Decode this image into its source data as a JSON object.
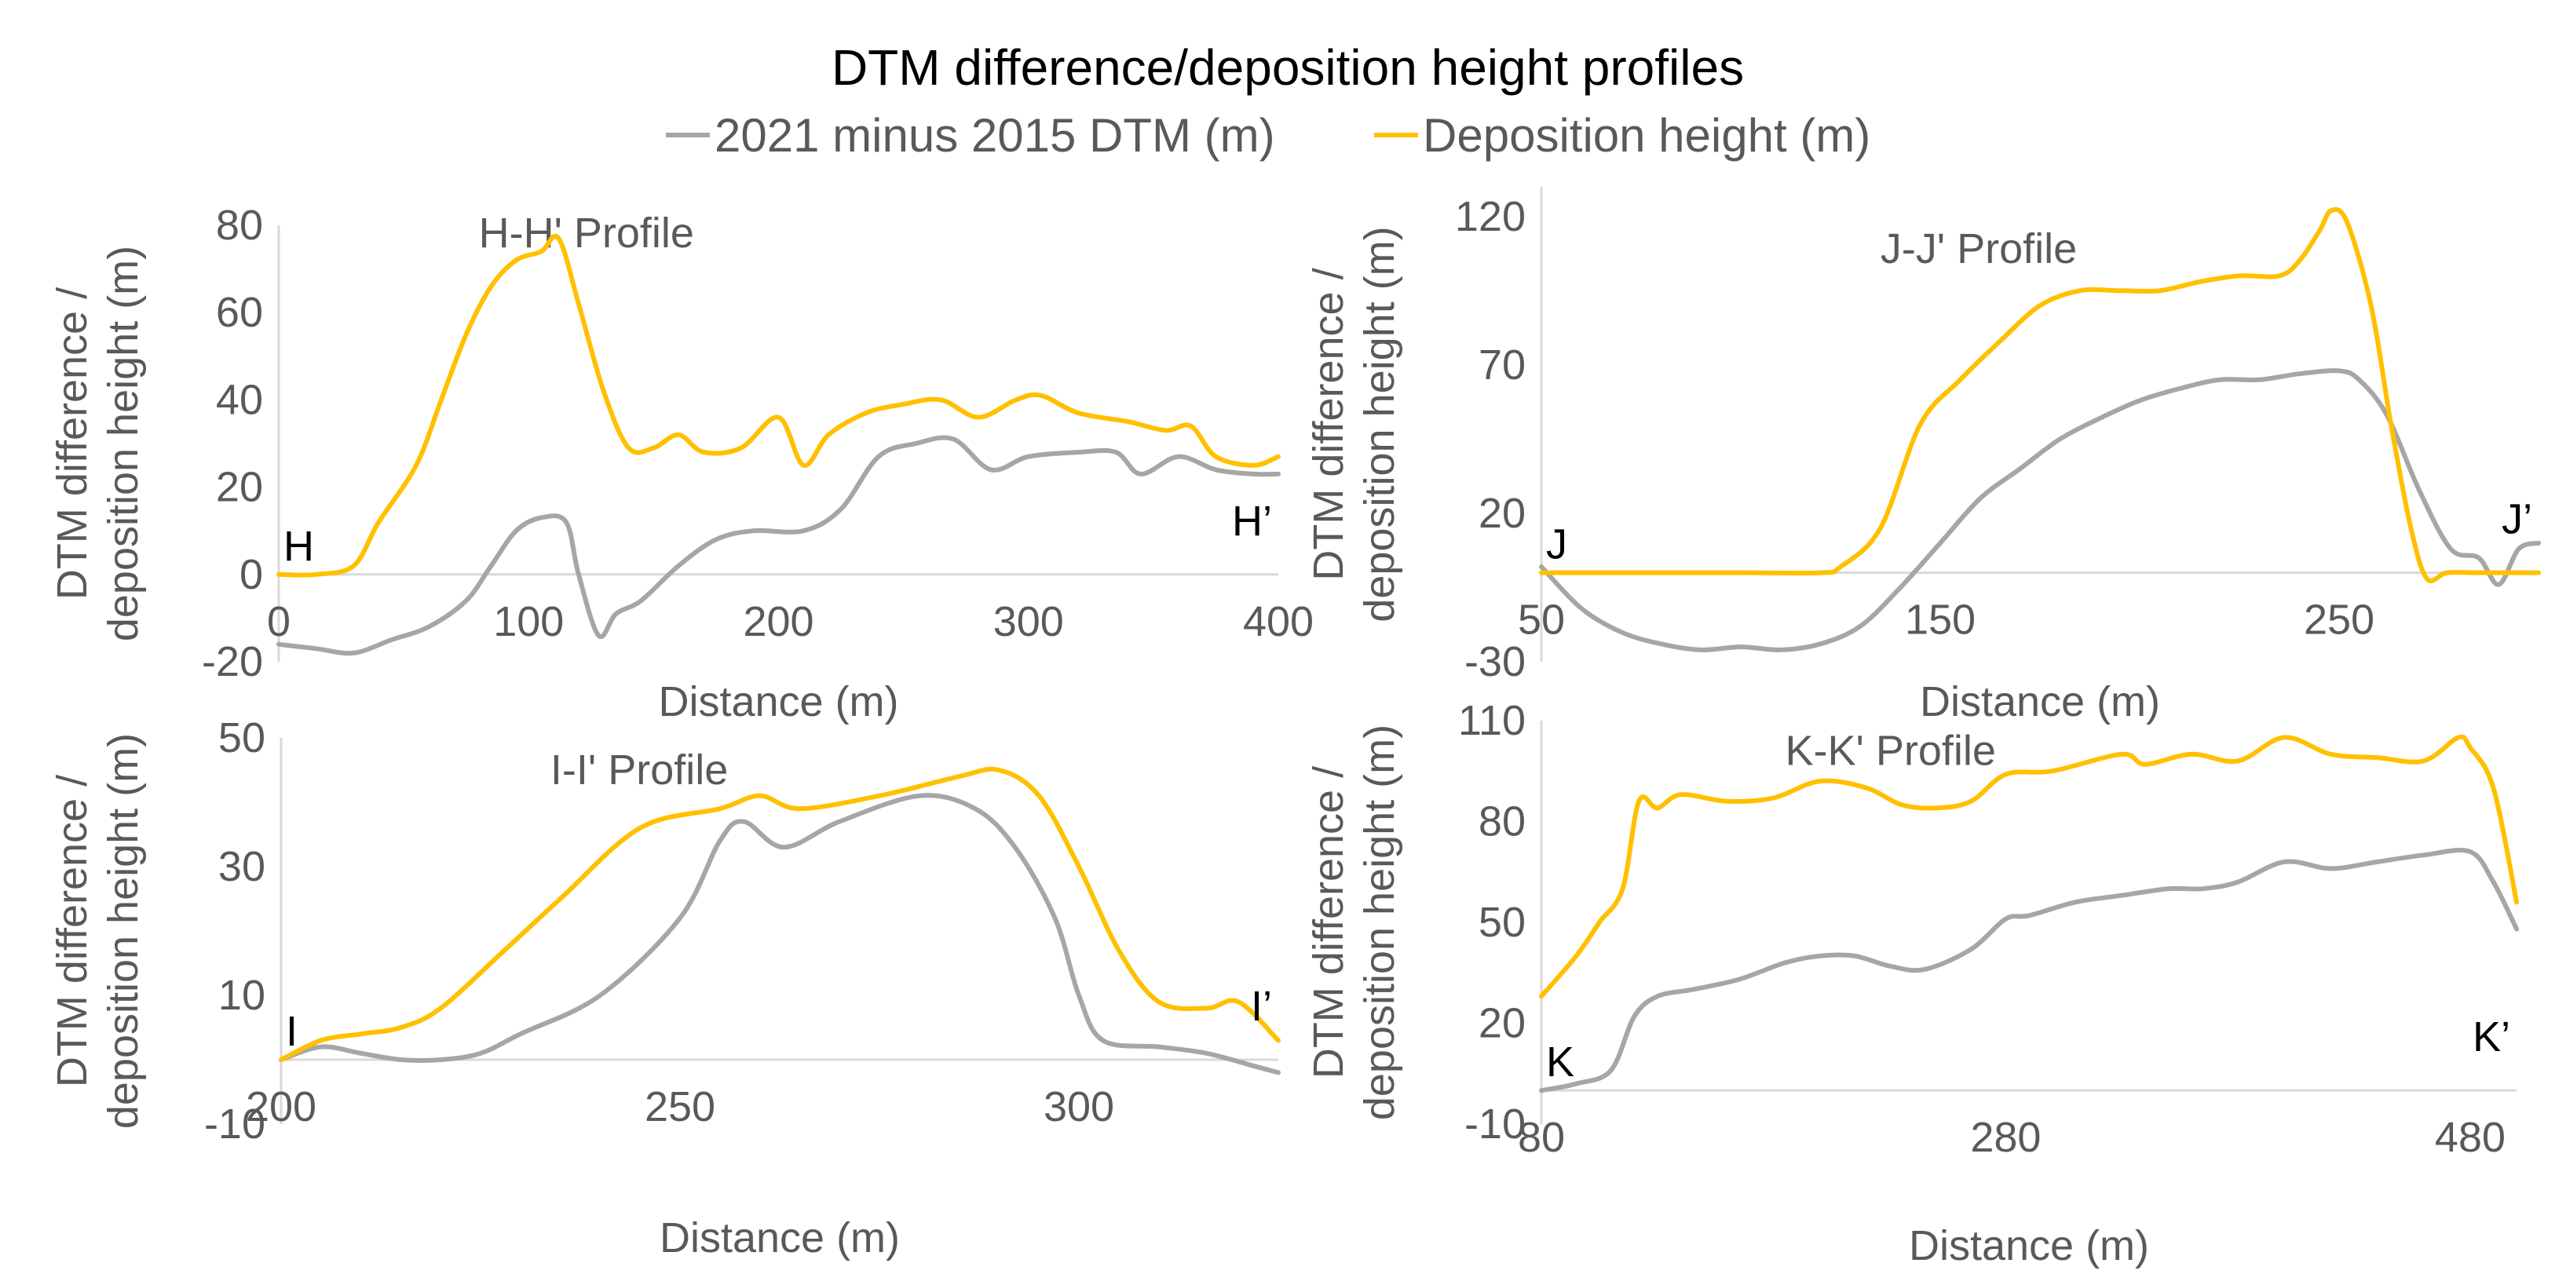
{
  "figure": {
    "title": "DTM difference/deposition height profiles",
    "legend": [
      {
        "label": "2021 minus 2015 DTM (m)",
        "color": "#a6a6a6"
      },
      {
        "label": "Deposition height (m)",
        "color": "#ffc000"
      }
    ]
  },
  "chart_data": [
    {
      "type": "line",
      "title": "H-H' Profile",
      "xlabel": "Distance (m)",
      "ylabel": "DTM difference / deposition height (m)",
      "xlim": [
        0,
        400
      ],
      "ylim": [
        -20,
        80
      ],
      "xticks": [
        0,
        100,
        200,
        300,
        400
      ],
      "yticks": [
        -20,
        0,
        20,
        40,
        60,
        80
      ],
      "start_label": "H",
      "end_label": "H’",
      "series": [
        {
          "name": "2021 minus 2015 DTM (m)",
          "color": "#a6a6a6",
          "x": [
            0,
            15,
            30,
            45,
            60,
            75,
            85,
            95,
            105,
            115,
            120,
            128,
            135,
            145,
            160,
            175,
            190,
            210,
            225,
            240,
            255,
            270,
            285,
            300,
            320,
            335,
            345,
            360,
            375,
            390,
            400
          ],
          "y": [
            -16,
            -17,
            -18,
            -15,
            -12,
            -6,
            2,
            10,
            13,
            12,
            0,
            -14,
            -9,
            -6,
            2,
            8,
            10,
            10,
            15,
            27,
            30,
            31,
            24,
            27,
            28,
            28,
            23,
            27,
            24,
            23,
            23
          ]
        },
        {
          "name": "Deposition height (m)",
          "color": "#ffc000",
          "x": [
            0,
            15,
            30,
            40,
            55,
            65,
            75,
            85,
            95,
            105,
            112,
            120,
            130,
            140,
            150,
            160,
            170,
            185,
            200,
            210,
            220,
            235,
            250,
            265,
            280,
            295,
            305,
            320,
            340,
            355,
            365,
            375,
            390,
            400
          ],
          "y": [
            0,
            0,
            2,
            12,
            25,
            40,
            55,
            66,
            72,
            74,
            77,
            62,
            42,
            29,
            29,
            32,
            28,
            29,
            36,
            25,
            32,
            37,
            39,
            40,
            36,
            40,
            41,
            37,
            35,
            33,
            34,
            27,
            25,
            27
          ]
        }
      ]
    },
    {
      "type": "line",
      "title": "J-J' Profile",
      "xlabel": "Distance (m)",
      "ylabel": "DTM difference / deposition height (m)",
      "xlim": [
        50,
        300
      ],
      "ylim": [
        -30,
        130
      ],
      "xticks": [
        50,
        150,
        250
      ],
      "yticks": [
        -30,
        20,
        70,
        120
      ],
      "start_label": "J",
      "end_label": "J’",
      "series": [
        {
          "name": "2021 minus 2015 DTM (m)",
          "color": "#a6a6a6",
          "x": [
            50,
            60,
            70,
            80,
            90,
            100,
            110,
            120,
            130,
            140,
            150,
            160,
            170,
            180,
            190,
            200,
            210,
            220,
            230,
            240,
            250,
            255,
            262,
            270,
            278,
            285,
            290,
            295,
            300
          ],
          "y": [
            2,
            -12,
            -20,
            -24,
            -26,
            -25,
            -26,
            -24,
            -18,
            -5,
            10,
            25,
            35,
            45,
            52,
            58,
            62,
            65,
            65,
            67,
            68,
            65,
            53,
            28,
            8,
            5,
            -4,
            8,
            10
          ]
        },
        {
          "name": "Deposition height (m)",
          "color": "#ffc000",
          "x": [
            50,
            100,
            120,
            125,
            135,
            145,
            155,
            165,
            175,
            185,
            195,
            205,
            215,
            225,
            235,
            240,
            245,
            248,
            252,
            258,
            263,
            268,
            272,
            277,
            285,
            300
          ],
          "y": [
            0,
            0,
            0,
            2,
            15,
            50,
            65,
            78,
            90,
            95,
            95,
            95,
            98,
            100,
            100,
            105,
            115,
            122,
            118,
            90,
            50,
            15,
            -2,
            0,
            0,
            0
          ]
        }
      ]
    },
    {
      "type": "line",
      "title": "I-I' Profile",
      "xlabel": "Distance (m)",
      "ylabel": "DTM difference / deposition height (m)",
      "xlim": [
        200,
        325
      ],
      "ylim": [
        -10,
        50
      ],
      "xticks": [
        200,
        250,
        300
      ],
      "yticks": [
        -10,
        10,
        30,
        50
      ],
      "start_label": "I",
      "end_label": "I’",
      "series": [
        {
          "name": "2021 minus 2015 DTM (m)",
          "color": "#a6a6a6",
          "x": [
            200,
            205,
            210,
            215,
            220,
            225,
            230,
            240,
            250,
            255,
            258,
            263,
            270,
            280,
            287,
            292,
            297,
            300,
            303,
            310,
            316,
            322,
            325
          ],
          "y": [
            0,
            2,
            1,
            0,
            0,
            1,
            4,
            10,
            22,
            34,
            37,
            33,
            37,
            41,
            39,
            33,
            22,
            10,
            3,
            2,
            1,
            -1,
            -2
          ]
        },
        {
          "name": "Deposition height (m)",
          "color": "#ffc000",
          "x": [
            200,
            205,
            210,
            215,
            220,
            228,
            235,
            245,
            255,
            260,
            265,
            275,
            285,
            290,
            295,
            300,
            305,
            310,
            316,
            320,
            325
          ],
          "y": [
            0,
            3,
            4,
            5,
            8,
            17,
            25,
            36,
            39,
            41,
            39,
            41,
            44,
            45,
            41,
            30,
            17,
            9,
            8,
            9,
            3
          ]
        }
      ]
    },
    {
      "type": "line",
      "title": "K-K' Profile",
      "xlabel": "Distance (m)",
      "ylabel": "DTM difference / deposition height (m)",
      "xlim": [
        80,
        500
      ],
      "ylim": [
        -10,
        110
      ],
      "xticks": [
        80,
        280,
        480
      ],
      "yticks": [
        -10,
        20,
        50,
        80,
        110
      ],
      "start_label": "K",
      "end_label": "K’",
      "series": [
        {
          "name": "2021 minus 2015 DTM (m)",
          "color": "#a6a6a6",
          "x": [
            80,
            95,
            110,
            120,
            130,
            145,
            165,
            185,
            200,
            215,
            230,
            245,
            265,
            280,
            290,
            310,
            330,
            350,
            365,
            380,
            400,
            420,
            440,
            460,
            480,
            490,
            500
          ],
          "y": [
            0,
            2,
            6,
            22,
            28,
            30,
            33,
            38,
            40,
            40,
            37,
            36,
            42,
            51,
            52,
            56,
            58,
            60,
            60,
            62,
            68,
            66,
            68,
            70,
            71,
            62,
            48
          ]
        },
        {
          "name": "Deposition height (m)",
          "color": "#ffc000",
          "x": [
            80,
            95,
            105,
            115,
            122,
            130,
            140,
            160,
            180,
            200,
            220,
            235,
            250,
            265,
            280,
            300,
            330,
            340,
            360,
            380,
            400,
            420,
            440,
            460,
            475,
            480,
            490,
            500
          ],
          "y": [
            28,
            40,
            50,
            60,
            86,
            84,
            88,
            86,
            87,
            92,
            90,
            85,
            84,
            86,
            94,
            95,
            100,
            97,
            100,
            98,
            105,
            100,
            99,
            98,
            105,
            102,
            90,
            56
          ]
        }
      ]
    }
  ]
}
